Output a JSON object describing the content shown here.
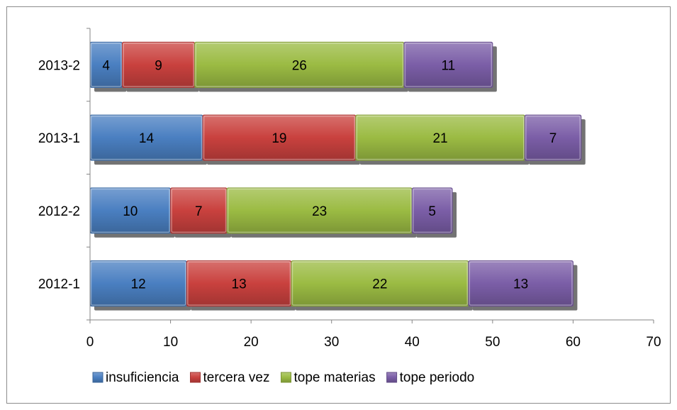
{
  "chart_data": {
    "type": "bar",
    "orientation": "horizontal",
    "stacked": true,
    "categories": [
      "2012-1",
      "2012-2",
      "2013-1",
      "2013-2"
    ],
    "series": [
      {
        "name": "insuficiencia",
        "values": [
          12,
          10,
          14,
          4
        ],
        "color": "#4a7fc1"
      },
      {
        "name": "tercera vez",
        "values": [
          13,
          7,
          19,
          9
        ],
        "color": "#c9413e"
      },
      {
        "name": "tope materias",
        "values": [
          22,
          23,
          21,
          26
        ],
        "color": "#9bbb43"
      },
      {
        "name": "tope periodo",
        "values": [
          13,
          5,
          7,
          11
        ],
        "color": "#7b5ea7"
      }
    ],
    "xlim": [
      0,
      70
    ],
    "xticks": [
      0,
      10,
      20,
      30,
      40,
      50,
      60,
      70
    ],
    "grid": false,
    "legend_position": "bottom",
    "data_labels": true,
    "style": "3d-bevel-shadow"
  }
}
